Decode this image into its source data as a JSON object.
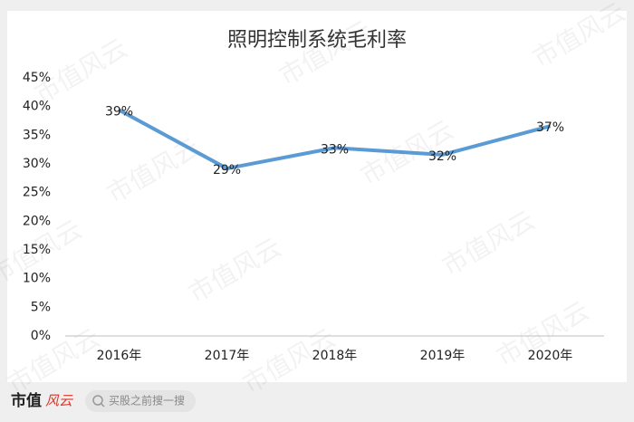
{
  "chart_data": {
    "type": "line",
    "title": "照明控制系统毛利率",
    "categories": [
      "2016年",
      "2017年",
      "2018年",
      "2019年",
      "2020年"
    ],
    "series": [
      {
        "name": "毛利率",
        "color": "#5b9bd5",
        "values": [
          39.4,
          29.2,
          32.8,
          31.6,
          36.6
        ],
        "value_labels": [
          "39%",
          "29%",
          "33%",
          "32%",
          "37%"
        ]
      }
    ],
    "ylim": [
      0,
      45
    ],
    "yticks": [
      {
        "value": 0,
        "label": "0%"
      },
      {
        "value": 5,
        "label": "5%"
      },
      {
        "value": 10,
        "label": "10%"
      },
      {
        "value": 15,
        "label": "15%"
      },
      {
        "value": 20,
        "label": "20%"
      },
      {
        "value": 25,
        "label": "25%"
      },
      {
        "value": 30,
        "label": "30%"
      },
      {
        "value": 35,
        "label": "35%"
      },
      {
        "value": 40,
        "label": "40%"
      },
      {
        "value": 45,
        "label": "45%"
      }
    ],
    "grid": false
  },
  "watermark": "市值风云",
  "footer": {
    "logo": "市值",
    "logo_script": "风云",
    "search": "买股之前搜一搜"
  }
}
